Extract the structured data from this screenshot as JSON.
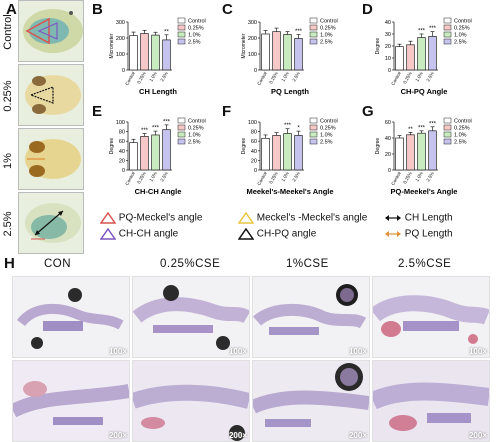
{
  "panel_labels": {
    "A": "A",
    "B": "B",
    "C": "C",
    "D": "D",
    "E": "E",
    "F": "F",
    "G": "G",
    "H": "H"
  },
  "row_labels": [
    "Control",
    "0.25%",
    "1%",
    "2.5%"
  ],
  "groups": [
    "Control",
    "0.25%",
    "1.0%",
    "2.5%"
  ],
  "colors": {
    "control": "#ffffff",
    "g025": "#f7c8c8",
    "g10": "#c8ecc0",
    "g25": "#c6c3ef",
    "outline": "#222222"
  },
  "chart_data": [
    {
      "id": "B",
      "type": "bar",
      "title": "CH Length",
      "ylabel": "Micrometer",
      "ylim": [
        0,
        300
      ],
      "yticks": [
        0,
        100,
        200,
        300
      ],
      "categories": [
        "Control",
        "0.25%",
        "1.0%",
        "2.5%"
      ],
      "values": [
        215,
        228,
        218,
        188
      ],
      "errors": [
        22,
        20,
        18,
        32
      ],
      "sig": [
        "",
        "",
        "",
        "**"
      ]
    },
    {
      "id": "C",
      "type": "bar",
      "title": "PQ Length",
      "ylabel": "Micrometer",
      "ylim": [
        0,
        300
      ],
      "yticks": [
        0,
        100,
        200,
        300
      ],
      "categories": [
        "Control",
        "0.25%",
        "1.0%",
        "2.5%"
      ],
      "values": [
        225,
        240,
        222,
        197
      ],
      "errors": [
        22,
        22,
        18,
        25
      ],
      "sig": [
        "",
        "",
        "",
        "***"
      ]
    },
    {
      "id": "D",
      "type": "bar",
      "title": "CH-PQ Angle",
      "ylabel": "Degree",
      "ylim": [
        0,
        40
      ],
      "yticks": [
        0,
        10,
        20,
        30,
        40
      ],
      "categories": [
        "Control",
        "0.25%",
        "1.0%",
        "2.5%"
      ],
      "values": [
        19.5,
        21,
        27,
        28
      ],
      "errors": [
        2,
        3,
        3,
        4
      ],
      "sig": [
        "",
        "",
        "***",
        "***"
      ]
    },
    {
      "id": "E",
      "type": "bar",
      "title": "CH-CH Angle",
      "ylabel": "Degree",
      "ylim": [
        0,
        100
      ],
      "yticks": [
        0,
        20,
        40,
        60,
        80,
        100
      ],
      "categories": [
        "Control",
        "0.25%",
        "1.0%",
        "2.5%"
      ],
      "values": [
        57,
        70,
        73,
        84
      ],
      "errors": [
        7,
        6,
        8,
        10
      ],
      "sig": [
        "",
        "***",
        "***",
        "***"
      ]
    },
    {
      "id": "F",
      "type": "bar",
      "title": "Meekel's-Meekel's Angle",
      "ylabel": "Degree",
      "ylim": [
        0,
        100
      ],
      "yticks": [
        0,
        20,
        40,
        60,
        80,
        100
      ],
      "categories": [
        "Control",
        "0.25%",
        "1.0%",
        "2.5%"
      ],
      "values": [
        66,
        72,
        76,
        72
      ],
      "errors": [
        7,
        6,
        10,
        9
      ],
      "sig": [
        "",
        "",
        "***",
        "*"
      ]
    },
    {
      "id": "G",
      "type": "bar",
      "title": "PQ-Meekel's Angle",
      "ylabel": "Degree",
      "ylim": [
        0,
        60
      ],
      "yticks": [
        0,
        20,
        40,
        60
      ],
      "categories": [
        "Control",
        "0.25%",
        "1.0%",
        "2.5%"
      ],
      "values": [
        40,
        44,
        46,
        49
      ],
      "errors": [
        3,
        3,
        3,
        5
      ],
      "sig": [
        "",
        "**",
        "***",
        "***"
      ]
    }
  ],
  "legend": [
    {
      "label": "PQ-Meckel's angle",
      "symbol": "triangle",
      "color": "#d9534f"
    },
    {
      "label": "Meckel's -Meckel's angle",
      "symbol": "triangle",
      "color": "#e8c640"
    },
    {
      "label": "CH Length",
      "symbol": "double-arrow",
      "color": "#111111"
    },
    {
      "label": "CH-CH angle",
      "symbol": "triangle",
      "color": "#7e57c2"
    },
    {
      "label": "CH-PQ angle",
      "symbol": "triangle",
      "color": "#111111"
    },
    {
      "label": "PQ Length",
      "symbol": "double-arrow",
      "color": "#e0913a"
    }
  ],
  "histology": {
    "titles": [
      "CON",
      "0.25%CSE",
      "1%CSE",
      "2.5%CSE"
    ],
    "mag_top": "100×",
    "mag_bottom": "200×"
  }
}
